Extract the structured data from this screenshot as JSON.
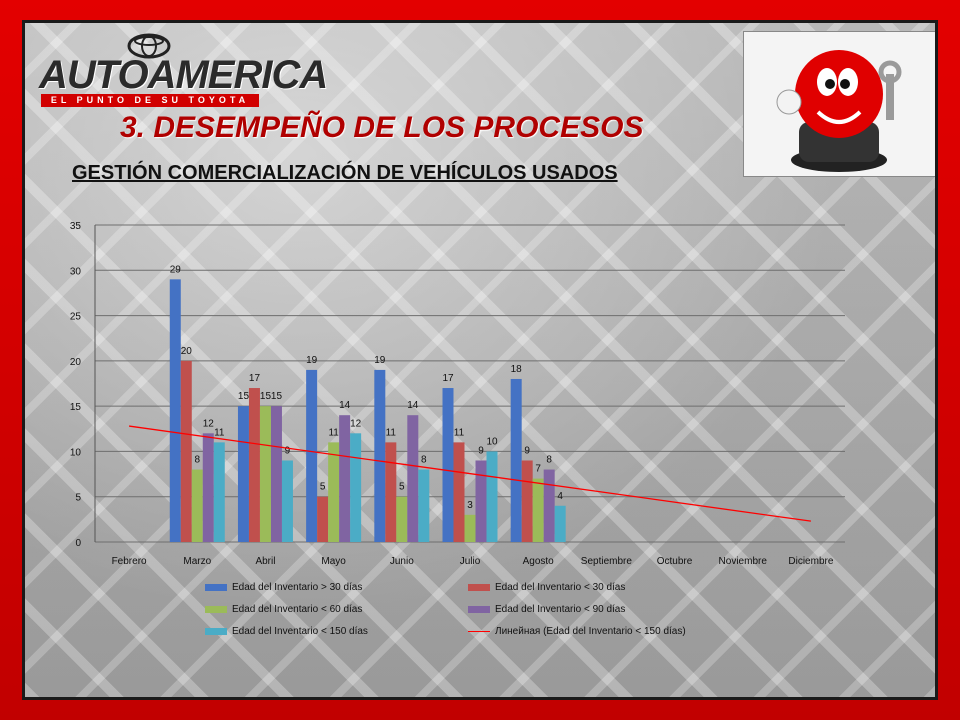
{
  "logo": {
    "name": "AUTOAMERICA",
    "tagline": "EL PUNTO DE SU TOYOTA"
  },
  "header": {
    "title": "3. DESEMPEÑO DE LOS PROCESOS",
    "subtitle": "GESTIÓN COMERCIALIZACIÓN DE VEHÍCULOS USADOS"
  },
  "colors": {
    "s1": "#4472c4",
    "s2": "#c0504d",
    "s3": "#9bbb59",
    "s4": "#8064a2",
    "s5": "#4bacc6",
    "trend": "#ff0000"
  },
  "chart_data": {
    "type": "bar",
    "title": "",
    "categories": [
      "Febrero",
      "Marzo",
      "Abril",
      "Mayo",
      "Junio",
      "Julio",
      "Agosto",
      "Septiembre",
      "Octubre",
      "Noviembre",
      "Diciembre"
    ],
    "ylim": [
      0,
      35
    ],
    "yticks": [
      0,
      5,
      10,
      15,
      20,
      25,
      30,
      35
    ],
    "grid": true,
    "legend": "bottom",
    "series": [
      {
        "name": "Edad del Inventario > 30 días",
        "values": [
          null,
          29,
          15,
          19,
          19,
          17,
          18,
          null,
          null,
          null,
          null
        ]
      },
      {
        "name": "Edad del Inventario < 30 días",
        "values": [
          null,
          20,
          17,
          5,
          11,
          11,
          9,
          null,
          null,
          null,
          null
        ]
      },
      {
        "name": "Edad del Inventario < 60 días",
        "values": [
          null,
          8,
          15,
          11,
          5,
          3,
          7,
          null,
          null,
          null,
          null
        ]
      },
      {
        "name": "Edad del Inventario < 90 días",
        "values": [
          null,
          12,
          15,
          14,
          14,
          9,
          8,
          null,
          null,
          null,
          null
        ]
      },
      {
        "name": "Edad del Inventario < 150 días",
        "values": [
          null,
          11,
          9,
          12,
          8,
          10,
          4,
          null,
          null,
          null,
          null
        ]
      }
    ],
    "trendline": {
      "name": "Линейная (Edad del Inventario < 150 días)",
      "start": 12.8,
      "end": 2.3
    }
  }
}
